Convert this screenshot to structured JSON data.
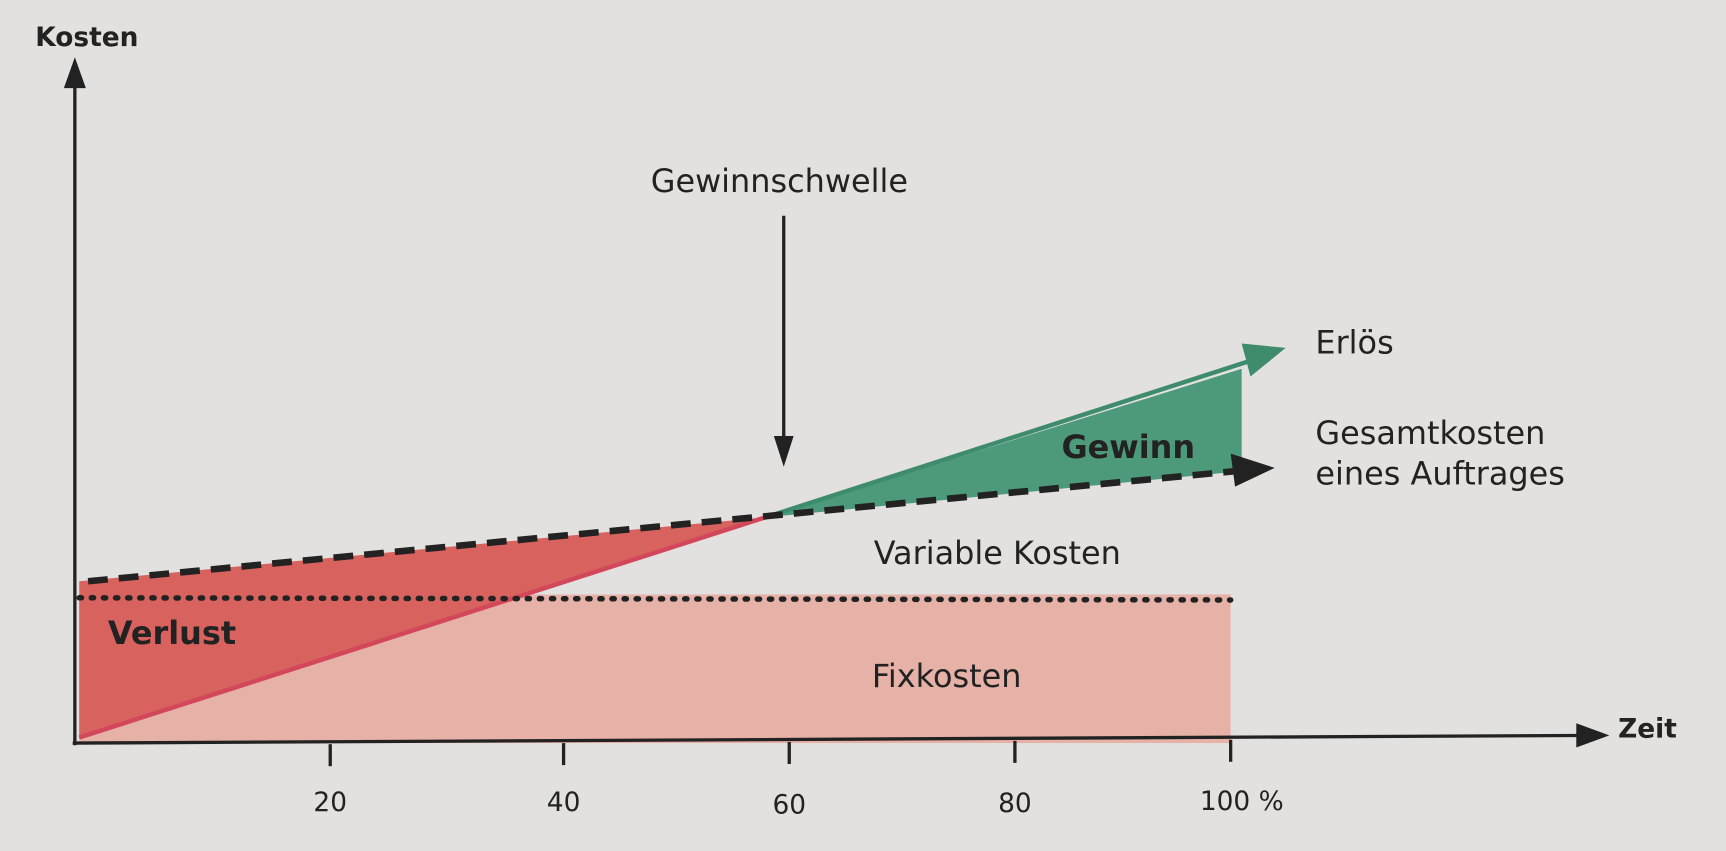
{
  "axes": {
    "y_label": "Kosten",
    "x_label": "Zeit",
    "x_ticks": [
      "20",
      "40",
      "60",
      "80",
      "100 %"
    ]
  },
  "annotations": {
    "break_even": "Gewinnschwelle",
    "revenue": "Erlös",
    "total_costs": [
      "Gesamtkosten",
      "eines Auftrages"
    ],
    "profit": "Gewinn",
    "variable_costs": "Variable Kosten",
    "fixed_costs": "Fixkosten",
    "loss": "Verlust"
  }
}
